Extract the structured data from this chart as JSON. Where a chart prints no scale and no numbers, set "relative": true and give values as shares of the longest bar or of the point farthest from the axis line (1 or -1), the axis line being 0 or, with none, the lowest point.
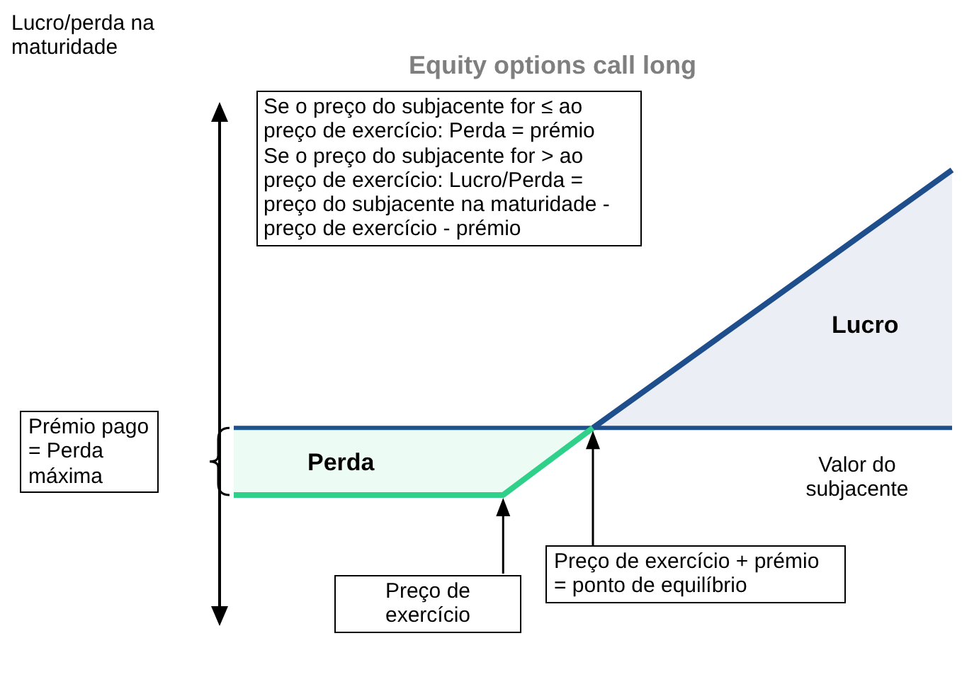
{
  "chart_data": {
    "type": "area",
    "title": "Equity options call long",
    "relative": true,
    "marker": "none",
    "ref_lines": [
      {
        "axis": "y",
        "value": 0,
        "color": "#1f4e8c"
      }
    ],
    "categories": [
      null,
      null,
      null,
      null,
      null,
      null,
      null,
      null,
      null
    ],
    "series": [
      {
        "color": "#2fd08a",
        "values": [
          -0.26,
          -0.26,
          -0.26,
          -0.26,
          0,
          null,
          null,
          null,
          null
        ]
      },
      {
        "color": "#1f4e8c",
        "values": [
          null,
          null,
          null,
          null,
          0,
          0.25,
          0.5,
          0.75,
          1
        ]
      }
    ],
    "annotations": [
      "Lucro/perda na maturidade",
      "Perda",
      "Lucro",
      "Valor do subjacente",
      "Prémio pago = Perda máxima",
      "Preço de exercício",
      "Preço de exercício + prémio = ponto de equilíbrio",
      "Se o preço do subjacente for ≤ ao preço de exercício: Perda = prémio\nSe o preço do subjacente for > ao preço de exercício: Lucro/Perda = preço do subjacente na maturidade - preço de exercício - prémio"
    ]
  }
}
